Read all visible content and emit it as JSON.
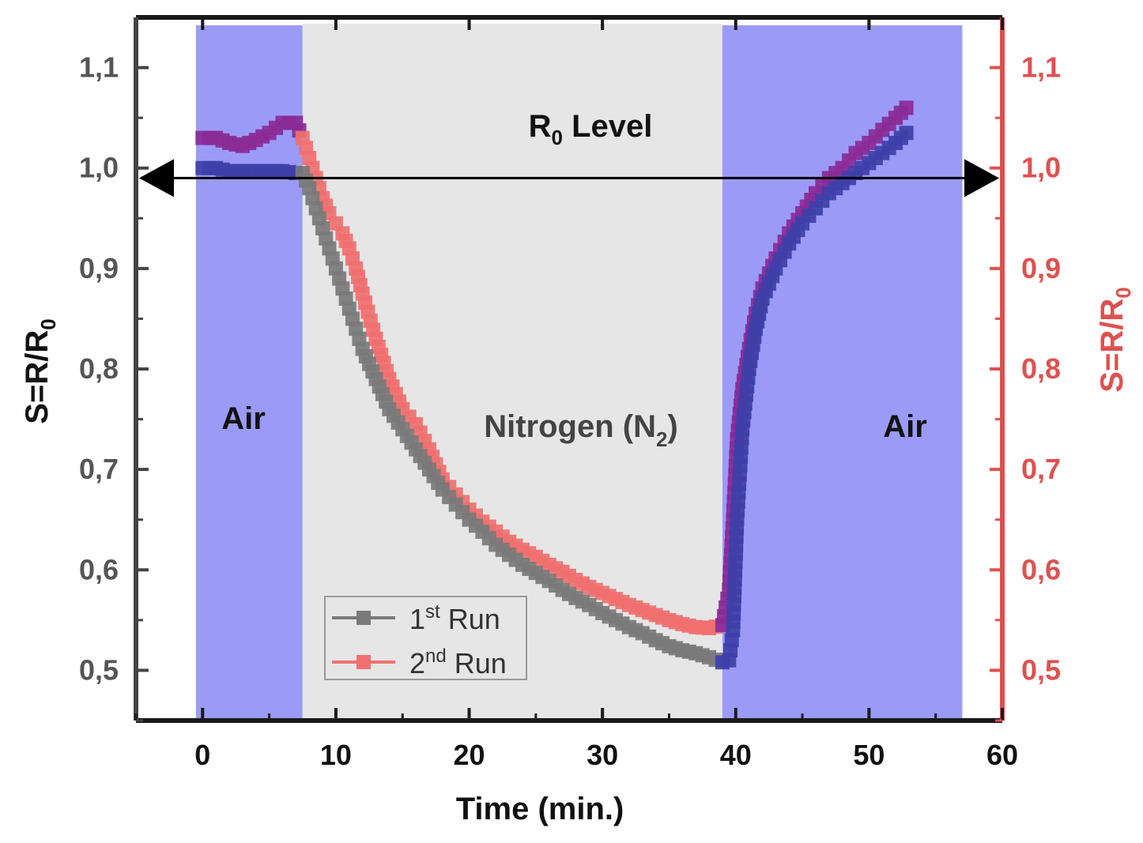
{
  "chart_data": {
    "type": "line",
    "xlabel": "Time (min.)",
    "ylabel_left": "S=R/R0",
    "ylabel_right": "S=R/R0",
    "xlim": [
      -5,
      60
    ],
    "ylim": [
      0.45,
      1.15
    ],
    "x_ticks": [
      0,
      10,
      20,
      30,
      40,
      50,
      60
    ],
    "x_tick_labels": [
      "0",
      "10",
      "20",
      "30",
      "40",
      "50",
      "60"
    ],
    "y_ticks": [
      0.5,
      0.6,
      0.7,
      0.8,
      0.9,
      1.0,
      1.1
    ],
    "y_tick_labels": [
      "0,5",
      "0,6",
      "0,7",
      "0,8",
      "0,9",
      "1,0",
      "1,1"
    ],
    "bands": [
      {
        "label": "Air",
        "x_start": -0.5,
        "x_end": 7.5,
        "color": "#9b9bf7"
      },
      {
        "label": "Nitrogen (N2)",
        "x_start": 7.5,
        "x_end": 39,
        "color": "#e6e6e6"
      },
      {
        "label": "Air",
        "x_start": 39,
        "x_end": 57,
        "color": "#9b9bf7"
      }
    ],
    "reference_line": {
      "label": "R0 Level",
      "y": 0.99,
      "x_start": -5,
      "x_end": 60
    },
    "series": [
      {
        "name": "1st Run",
        "color": "#7a7a7a",
        "air_color": "#3f3fa8",
        "x": [
          0,
          1,
          2,
          3,
          4,
          5,
          6,
          7,
          7.5,
          8,
          8.5,
          9,
          9.5,
          10,
          10.5,
          11,
          11.5,
          12,
          13,
          14,
          15,
          16,
          17,
          18,
          19,
          20,
          21,
          22,
          23,
          24,
          25,
          26,
          27,
          28,
          29,
          30,
          31,
          32,
          33,
          34,
          35,
          36,
          37,
          38,
          39,
          39.5,
          39.8,
          40.1,
          40.5,
          41,
          41.5,
          42,
          43,
          44,
          45,
          46,
          47,
          48,
          49,
          50,
          51,
          52,
          52.8
        ],
        "y": [
          1.0,
          1.0,
          0.997,
          0.997,
          0.997,
          0.997,
          0.997,
          0.995,
          0.995,
          0.98,
          0.96,
          0.94,
          0.92,
          0.9,
          0.88,
          0.86,
          0.84,
          0.82,
          0.79,
          0.76,
          0.74,
          0.72,
          0.7,
          0.68,
          0.665,
          0.65,
          0.638,
          0.625,
          0.615,
          0.605,
          0.597,
          0.589,
          0.58,
          0.572,
          0.565,
          0.557,
          0.55,
          0.543,
          0.537,
          0.53,
          0.524,
          0.52,
          0.517,
          0.513,
          0.508,
          0.51,
          0.54,
          0.65,
          0.74,
          0.8,
          0.84,
          0.87,
          0.9,
          0.925,
          0.945,
          0.96,
          0.975,
          0.985,
          0.995,
          1.005,
          1.015,
          1.025,
          1.035
        ]
      },
      {
        "name": "2nd Run",
        "color": "#f07070",
        "air_color": "#8a2a96",
        "x": [
          0,
          1,
          2,
          3,
          4,
          5,
          6,
          7,
          7.5,
          8,
          8.5,
          9,
          9.5,
          10,
          10.5,
          11,
          11.5,
          12,
          13,
          14,
          15,
          16,
          17,
          18,
          19,
          20,
          21,
          22,
          23,
          24,
          25,
          26,
          27,
          28,
          29,
          30,
          31,
          32,
          33,
          34,
          35,
          36,
          37,
          38,
          39,
          39.5,
          39.8,
          40.1,
          40.5,
          41,
          41.5,
          42,
          43,
          44,
          45,
          46,
          47,
          48,
          49,
          50,
          51,
          52,
          52.8
        ],
        "y": [
          1.03,
          1.03,
          1.025,
          1.022,
          1.028,
          1.035,
          1.045,
          1.045,
          1.03,
          1.01,
          0.99,
          0.97,
          0.955,
          0.945,
          0.935,
          0.92,
          0.9,
          0.875,
          0.83,
          0.79,
          0.76,
          0.745,
          0.72,
          0.69,
          0.675,
          0.66,
          0.648,
          0.638,
          0.628,
          0.62,
          0.613,
          0.605,
          0.598,
          0.59,
          0.583,
          0.577,
          0.571,
          0.565,
          0.56,
          0.555,
          0.55,
          0.546,
          0.543,
          0.542,
          0.545,
          0.58,
          0.65,
          0.73,
          0.78,
          0.82,
          0.855,
          0.88,
          0.91,
          0.935,
          0.955,
          0.975,
          0.99,
          1.0,
          1.015,
          1.025,
          1.038,
          1.05,
          1.06
        ]
      }
    ],
    "legend": {
      "position": "bottom-center",
      "entries": [
        "1st Run",
        "2nd Run"
      ]
    }
  },
  "labels": {
    "air_left": "Air",
    "nitrogen": "Nitrogen (N",
    "nitrogen_sub": "2",
    "nitrogen_close": ")",
    "air_right": "Air",
    "r0_level_r": "R",
    "r0_level_sub": "0",
    "r0_level_rest": " Level",
    "ylabel_main": "S=R/R",
    "ylabel_sub": "0",
    "xlabel": "Time (min.)",
    "legend_1_pre": "1",
    "legend_1_sup": "st",
    "legend_1_post": " Run",
    "legend_2_pre": "2",
    "legend_2_sup": "nd",
    "legend_2_post": " Run"
  },
  "colors": {
    "air_band": "#9b9bf7",
    "nitrogen_band": "#e6e6e6",
    "right_axis": "#e05050",
    "axis": "#1a1a1a"
  }
}
